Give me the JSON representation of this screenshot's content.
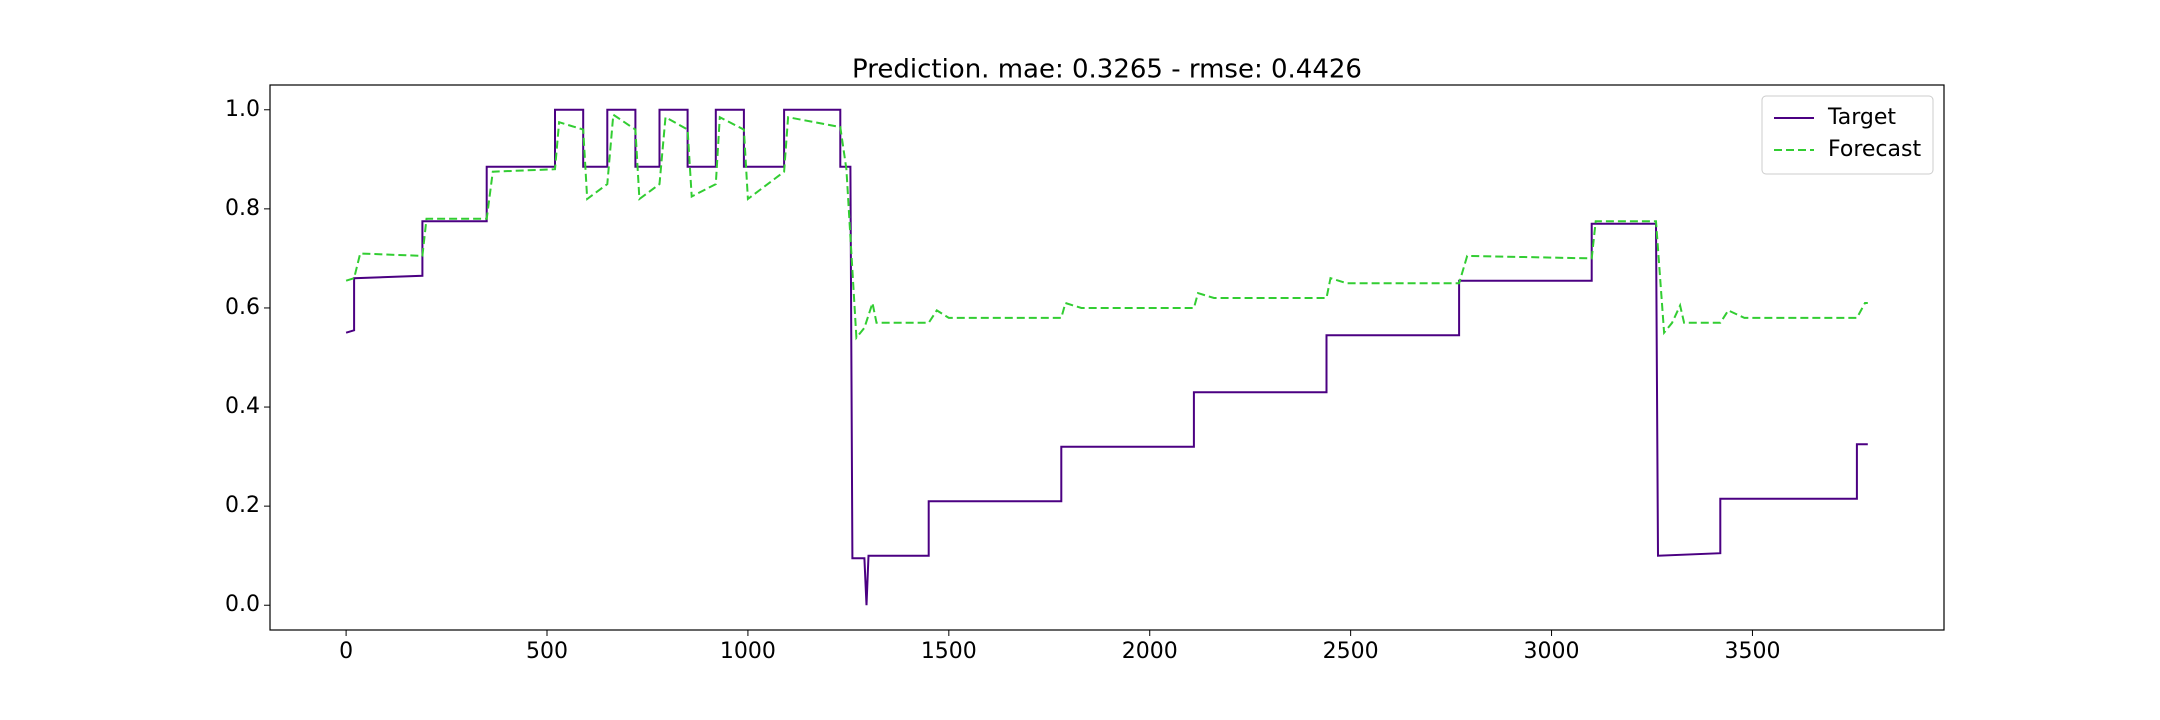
{
  "chart_data": {
    "type": "line",
    "title": "Prediction. mae: 0.3265 - rmse: 0.4426",
    "xlim": [
      -189.4,
      3976.7
    ],
    "ylim": [
      -0.05,
      1.05
    ],
    "xticks": [
      0,
      500,
      1000,
      1500,
      2000,
      2500,
      3000,
      3500
    ],
    "yticks": [
      {
        "value": 0,
        "label": "0.0"
      },
      0.2,
      0.4,
      0.6,
      0.8,
      {
        "value": 1,
        "label": "1.0"
      }
    ],
    "legend": "upper right",
    "series": [
      {
        "name": "Target",
        "color": "#4b0082",
        "dash": "solid",
        "x": [
          0,
          20,
          20,
          190,
          190,
          350,
          350,
          520,
          520,
          590,
          590,
          650,
          650,
          720,
          720,
          780,
          780,
          850,
          850,
          920,
          920,
          990,
          990,
          1090,
          1090,
          1230,
          1230,
          1255,
          1260,
          1290,
          1295,
          1300,
          1450,
          1450,
          1780,
          1780,
          2110,
          2110,
          2440,
          2440,
          2770,
          2770,
          3100,
          3100,
          3260,
          3265,
          3420,
          3420,
          3760,
          3760,
          3787
        ],
        "values": [
          0.55,
          0.555,
          0.66,
          0.665,
          0.775,
          0.775,
          0.885,
          0.885,
          1.0,
          1.0,
          0.885,
          0.885,
          1.0,
          1.0,
          0.885,
          0.885,
          1.0,
          1.0,
          0.885,
          0.885,
          1.0,
          1.0,
          0.885,
          0.885,
          1.0,
          1.0,
          0.885,
          0.885,
          0.095,
          0.095,
          0.0,
          0.1,
          0.1,
          0.21,
          0.21,
          0.32,
          0.32,
          0.43,
          0.43,
          0.545,
          0.545,
          0.655,
          0.655,
          0.77,
          0.77,
          0.1,
          0.105,
          0.215,
          0.215,
          0.325,
          0.325
        ]
      },
      {
        "name": "Forecast",
        "color": "#32cd32",
        "dash": "dashed",
        "x": [
          0,
          20,
          35,
          190,
          200,
          350,
          365,
          520,
          530,
          590,
          600,
          650,
          665,
          720,
          730,
          780,
          795,
          850,
          860,
          920,
          930,
          990,
          1000,
          1090,
          1100,
          1230,
          1245,
          1270,
          1290,
          1310,
          1320,
          1450,
          1470,
          1500,
          1780,
          1790,
          1830,
          2110,
          2120,
          2160,
          2440,
          2450,
          2490,
          2770,
          2790,
          3100,
          3110,
          3260,
          3280,
          3300,
          3320,
          3330,
          3420,
          3440,
          3480,
          3760,
          3780,
          3787
        ],
        "values": [
          0.655,
          0.66,
          0.71,
          0.705,
          0.78,
          0.78,
          0.875,
          0.88,
          0.975,
          0.96,
          0.82,
          0.85,
          0.99,
          0.96,
          0.82,
          0.85,
          0.985,
          0.96,
          0.825,
          0.85,
          0.985,
          0.96,
          0.82,
          0.875,
          0.985,
          0.965,
          0.88,
          0.54,
          0.56,
          0.61,
          0.57,
          0.57,
          0.595,
          0.58,
          0.58,
          0.61,
          0.6,
          0.6,
          0.63,
          0.62,
          0.62,
          0.66,
          0.65,
          0.65,
          0.705,
          0.7,
          0.775,
          0.775,
          0.55,
          0.57,
          0.605,
          0.57,
          0.57,
          0.595,
          0.58,
          0.58,
          0.61,
          0.61
        ]
      }
    ]
  }
}
